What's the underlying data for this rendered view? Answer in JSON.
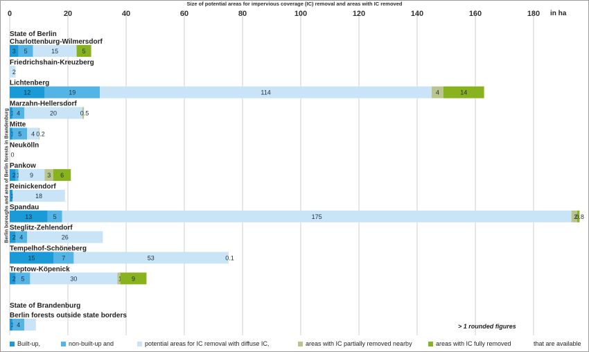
{
  "chart_data": {
    "type": "bar",
    "orientation": "horizontal",
    "stacked": true,
    "title": "Size of potential areas for impervious coverage (IC) removal and areas with IC removed",
    "unit_label": "in ha",
    "ylabel": "Berlin boroughs and area of Berlin forests in Brandenburg",
    "xlim": [
      0,
      190
    ],
    "xticks": [
      0,
      20,
      40,
      60,
      80,
      100,
      120,
      140,
      160,
      180
    ],
    "grid": true,
    "legend_position": "bottom",
    "note": "> 1 rounded figures",
    "legend_tail": "that are available",
    "section_headers": [
      {
        "label": "State of Berlin",
        "row_before": 0
      },
      {
        "label": "State of Brandenburg",
        "row_before": 13
      }
    ],
    "series": [
      {
        "name": "Built-up,",
        "color": "#1a9ad6"
      },
      {
        "name": "non-built-up and",
        "color": "#55b4e6"
      },
      {
        "name": "potential areas for IC removal with diffuse IC,",
        "color": "#c8e4f6"
      },
      {
        "name": "areas with IC partially removed nearby",
        "color": "#bac58e"
      },
      {
        "name": "areas with IC fully removed",
        "color": "#88b31e"
      }
    ],
    "categories": [
      {
        "name": "Charlottenburg-Wilmersdorf",
        "values": [
          3,
          5,
          15,
          0,
          5
        ],
        "labels": [
          "3",
          "5",
          "15",
          "",
          "5"
        ]
      },
      {
        "name": "Friedrichshain-Kreuzberg",
        "values": [
          0,
          0,
          2,
          0,
          0
        ],
        "labels": [
          "",
          "",
          "2",
          "",
          ""
        ]
      },
      {
        "name": "Lichtenberg",
        "values": [
          12,
          19,
          114,
          4,
          14
        ],
        "labels": [
          "12",
          "19",
          "114",
          "4",
          "14"
        ]
      },
      {
        "name": "Marzahn-Hellersdorf",
        "values": [
          1,
          4,
          20,
          0.5,
          0
        ],
        "labels": [
          "1",
          "4",
          "20",
          "0.5",
          ""
        ]
      },
      {
        "name": "Mitte",
        "values": [
          1,
          5,
          4,
          0.2,
          0
        ],
        "labels": [
          "1",
          "5",
          "4",
          "0.2",
          ""
        ]
      },
      {
        "name": "Neukölln",
        "values": [
          0,
          0,
          0,
          0,
          0
        ],
        "labels": [
          "",
          "",
          "0",
          "",
          ""
        ]
      },
      {
        "name": "Pankow",
        "values": [
          2,
          1,
          9,
          3,
          6
        ],
        "labels": [
          "2",
          "1",
          "9",
          "3",
          "6"
        ]
      },
      {
        "name": "Reinickendorf",
        "values": [
          1,
          0,
          18,
          0,
          0
        ],
        "labels": [
          "1",
          "",
          "18",
          "",
          ""
        ]
      },
      {
        "name": "Spandau",
        "values": [
          13,
          5,
          175,
          2,
          0.8
        ],
        "labels": [
          "13",
          "5",
          "175",
          "2",
          "0.8"
        ]
      },
      {
        "name": "Steglitz-Zehlendorf",
        "values": [
          2,
          4,
          26,
          0,
          0
        ],
        "labels": [
          "2",
          "4",
          "26",
          "",
          ""
        ]
      },
      {
        "name": "Tempelhof-Schöneberg",
        "values": [
          15,
          7,
          53,
          0.1,
          0
        ],
        "labels": [
          "15",
          "7",
          "53",
          "0.1",
          ""
        ]
      },
      {
        "name": "Treptow-Köpenick",
        "values": [
          2,
          5,
          30,
          1,
          9
        ],
        "labels": [
          "2",
          "5",
          "30",
          "1",
          "9"
        ]
      },
      {
        "name": "Berlin forests outside state borders",
        "values": [
          1,
          4,
          4,
          0,
          0
        ],
        "labels": [
          "1",
          "4",
          "",
          "",
          ""
        ]
      }
    ]
  }
}
